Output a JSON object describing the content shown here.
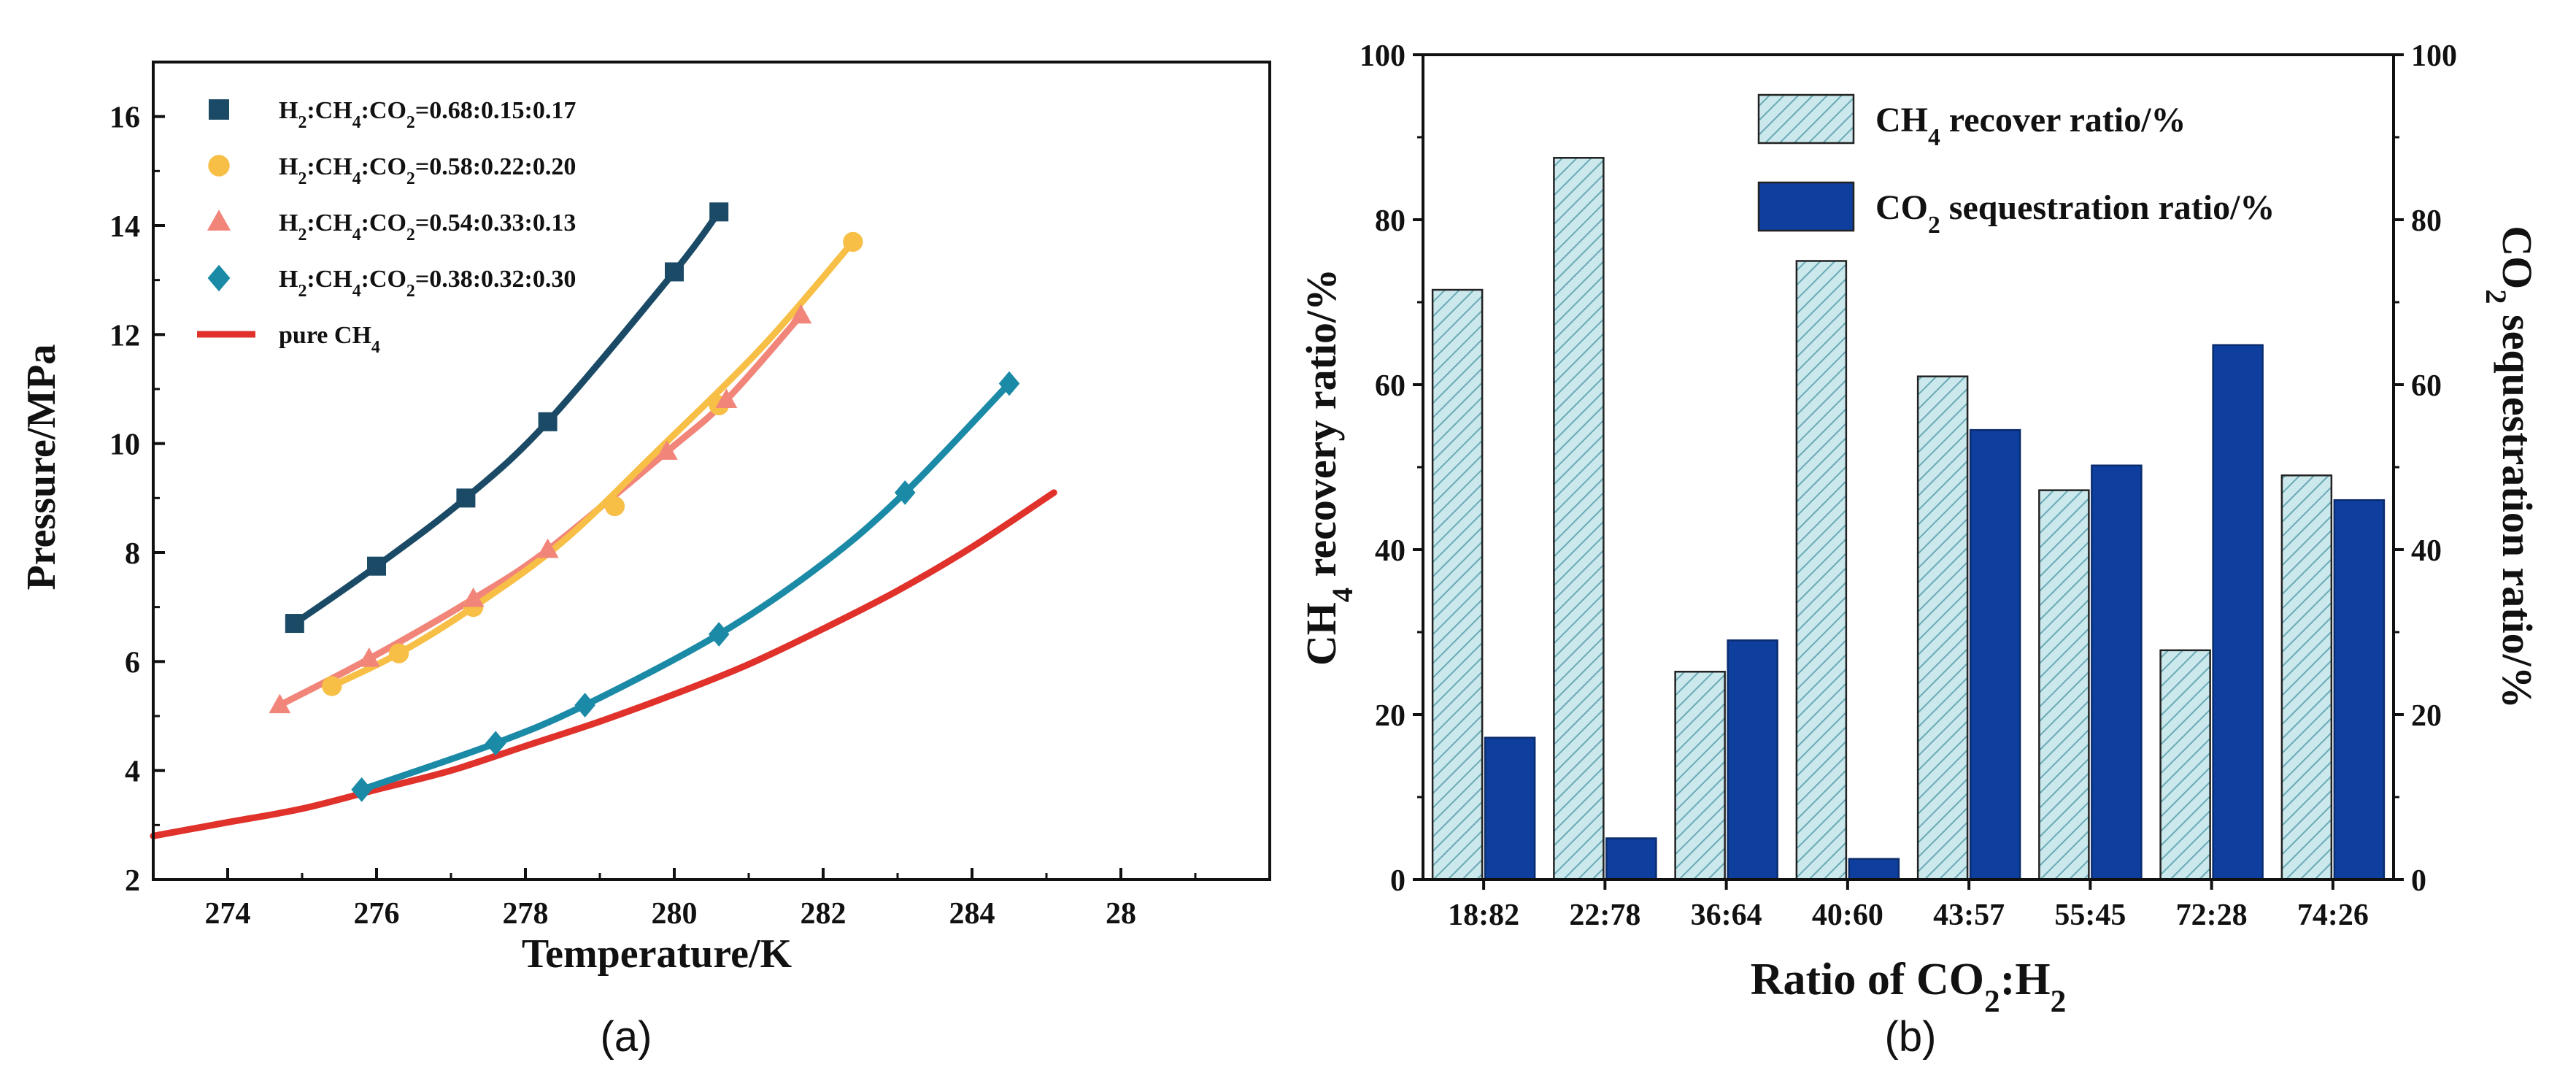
{
  "chart_data": [
    {
      "panel": "(a)",
      "type": "line",
      "xlabel": "Temperature/K",
      "ylabel": "Pressure/MPa",
      "xlim": [
        273,
        288
      ],
      "ylim": [
        2,
        17
      ],
      "xticks": [
        "274",
        "276",
        "278",
        "280",
        "282",
        "284",
        "28"
      ],
      "yticks": [
        "2",
        "4",
        "6",
        "8",
        "10",
        "12",
        "14",
        "16"
      ],
      "legend_position": "top-left",
      "series": [
        {
          "name": "H2:CH4:CO2=0.68:0.15:0.17",
          "legend": {
            "pre": "H",
            "s1": "2",
            "mid1": ":CH",
            "s2": "4",
            "mid2": ":CO",
            "s3": "2",
            "post": "=0.68:0.15:0.17"
          },
          "marker": "square",
          "color": "#1a4a66",
          "points": [
            [
              274.9,
              6.7
            ],
            [
              276.0,
              7.75
            ],
            [
              277.2,
              9.0
            ],
            [
              278.3,
              10.4
            ],
            [
              280.0,
              13.15
            ],
            [
              280.6,
              14.25
            ]
          ],
          "fit": [
            [
              274.9,
              6.7
            ],
            [
              276.0,
              7.75
            ],
            [
              277.2,
              9.0
            ],
            [
              278.3,
              10.4
            ],
            [
              280.0,
              13.15
            ],
            [
              280.6,
              14.25
            ]
          ]
        },
        {
          "name": "H2:CH4:CO2=0.58:0.22:0.20",
          "legend": {
            "pre": "H",
            "s1": "2",
            "mid1": ":CH",
            "s2": "4",
            "mid2": ":CO",
            "s3": "2",
            "post": "=0.58:0.22:0.20"
          },
          "marker": "circle",
          "color": "#f7bf45",
          "points": [
            [
              275.4,
              5.55
            ],
            [
              276.3,
              6.15
            ],
            [
              277.3,
              7.0
            ],
            [
              279.2,
              8.85
            ],
            [
              280.6,
              10.7
            ],
            [
              282.4,
              13.7
            ]
          ],
          "fit": [
            [
              275.4,
              5.55
            ],
            [
              276.3,
              6.15
            ],
            [
              277.3,
              7.0
            ],
            [
              278.5,
              8.2
            ],
            [
              279.8,
              9.9
            ],
            [
              281.2,
              11.8
            ],
            [
              282.4,
              13.7
            ]
          ]
        },
        {
          "name": "H2:CH4:CO2=0.54:0.33:0.13",
          "legend": {
            "pre": "H",
            "s1": "2",
            "mid1": ":CH",
            "s2": "4",
            "mid2": ":CO",
            "s3": "2",
            "post": "=0.54:0.33:0.13"
          },
          "marker": "triangle",
          "color": "#f2857a",
          "points": [
            [
              274.7,
              5.2
            ],
            [
              275.9,
              6.05
            ],
            [
              277.3,
              7.15
            ],
            [
              278.3,
              8.05
            ],
            [
              279.9,
              9.85
            ],
            [
              280.7,
              10.8
            ],
            [
              281.7,
              12.35
            ]
          ],
          "fit": [
            [
              274.7,
              5.2
            ],
            [
              275.9,
              6.05
            ],
            [
              277.3,
              7.15
            ],
            [
              278.3,
              8.05
            ],
            [
              279.9,
              9.85
            ],
            [
              280.7,
              10.8
            ],
            [
              281.7,
              12.35
            ]
          ]
        },
        {
          "name": "H2:CH4:CO2=0.38:0.32:0.30",
          "legend": {
            "pre": "H",
            "s1": "2",
            "mid1": ":CH",
            "s2": "4",
            "mid2": ":CO",
            "s3": "2",
            "post": "=0.38:0.32:0.30"
          },
          "marker": "diamond",
          "color": "#1b8aa6",
          "points": [
            [
              275.8,
              3.65
            ],
            [
              277.6,
              4.5
            ],
            [
              278.8,
              5.2
            ],
            [
              280.6,
              6.5
            ],
            [
              283.1,
              9.1
            ],
            [
              284.5,
              11.1
            ]
          ],
          "fit": [
            [
              275.8,
              3.65
            ],
            [
              277.6,
              4.5
            ],
            [
              278.8,
              5.2
            ],
            [
              280.6,
              6.5
            ],
            [
              282.0,
              7.8
            ],
            [
              283.1,
              9.1
            ],
            [
              284.5,
              11.1
            ]
          ]
        },
        {
          "name": "pure CH4",
          "legend": {
            "pre": "pure CH",
            "s1": "4",
            "mid1": "",
            "s2": "",
            "mid2": "",
            "s3": "",
            "post": ""
          },
          "marker": "none",
          "color": "#e0312b",
          "points": [],
          "fit": [
            [
              273.0,
              2.8
            ],
            [
              274.0,
              3.05
            ],
            [
              275.0,
              3.3
            ],
            [
              276.0,
              3.65
            ],
            [
              277.0,
              4.0
            ],
            [
              278.0,
              4.45
            ],
            [
              279.0,
              4.9
            ],
            [
              280.0,
              5.4
            ],
            [
              281.0,
              5.95
            ],
            [
              282.0,
              6.6
            ],
            [
              283.0,
              7.3
            ],
            [
              284.0,
              8.1
            ],
            [
              285.1,
              9.1
            ]
          ]
        }
      ]
    },
    {
      "panel": "(b)",
      "type": "bar",
      "xlabel": {
        "pre": "Ratio of CO",
        "s1": "2",
        "mid": ":H",
        "s2": "2"
      },
      "ylabel_left": {
        "pre": "CH",
        "sub": "4",
        "post": " recovery ratio/%"
      },
      "ylabel_right": {
        "pre": "CO",
        "sub": "2",
        "post": " sequestration ratio/%"
      },
      "ylim": [
        0,
        100
      ],
      "yticks": [
        "0",
        "20",
        "40",
        "60",
        "80",
        "100"
      ],
      "categories": [
        "18:82",
        "22:78",
        "36:64",
        "40:60",
        "43:57",
        "55:45",
        "72:28",
        "74:26"
      ],
      "legend_position": "top-right",
      "series": [
        {
          "name": "CH4 recover ratio/%",
          "legend": {
            "pre": "CH",
            "sub": "4",
            "post": " recover ratio/%"
          },
          "color": "#bfe3e8",
          "pattern": "hatched",
          "values": [
            71.5,
            87.5,
            25.2,
            75.0,
            61.0,
            47.2,
            27.8,
            49.0
          ]
        },
        {
          "name": "CO2 sequestration ratio/%",
          "legend": {
            "pre": "CO",
            "sub": "2",
            "post": " sequestration ratio/%"
          },
          "color": "#0f3f9e",
          "pattern": "solid",
          "values": [
            17.2,
            5.0,
            29.0,
            2.5,
            54.5,
            50.2,
            64.8,
            46.0
          ]
        }
      ]
    }
  ]
}
